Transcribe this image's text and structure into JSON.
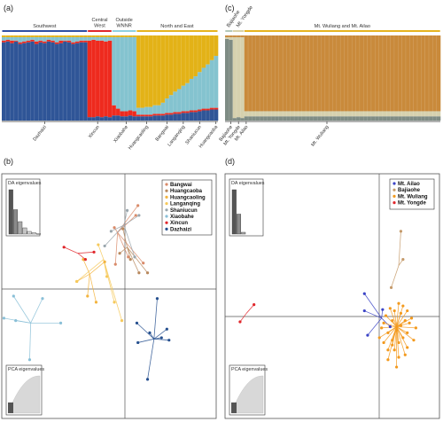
{
  "panels": {
    "a": {
      "label": "(a)"
    },
    "b": {
      "label": "(b)"
    },
    "c": {
      "label": "(c)"
    },
    "d": {
      "label": "(d)"
    }
  },
  "chart_data": [
    {
      "id": "a",
      "type": "bar",
      "stacked": true,
      "n_individuals": 53,
      "groups": [
        {
          "name": "Southwest",
          "start": 0,
          "end": 21,
          "color": "#2e4fa3"
        },
        {
          "name": "Central West",
          "start": 21,
          "end": 27,
          "color": "#e0262b"
        },
        {
          "name": "Outside WNNR",
          "start": 27,
          "end": 33,
          "color": "#8fd0df"
        },
        {
          "name": "North and East",
          "start": 33,
          "end": 53,
          "color": "#e6b420"
        }
      ],
      "tick_labels": [
        {
          "label": "Dazhaizi",
          "at": 10
        },
        {
          "label": "Xincun",
          "at": 23
        },
        {
          "label": "Xiaobahe",
          "at": 30
        },
        {
          "label": "Huangcaoling",
          "at": 35
        },
        {
          "label": "Bangwai",
          "at": 40
        },
        {
          "label": "Langanqing",
          "at": 44
        },
        {
          "label": "Shaniucun",
          "at": 48
        },
        {
          "label": "Huangcaoba",
          "at": 52
        }
      ],
      "colors": {
        "blue": "#2f5597",
        "red": "#ee2a1e",
        "lightblue": "#84c3cf",
        "yellow": "#e3b217"
      },
      "proportions": [
        [
          0.92,
          0.02,
          0.04,
          0.02
        ],
        [
          0.93,
          0.02,
          0.03,
          0.02
        ],
        [
          0.91,
          0.03,
          0.04,
          0.02
        ],
        [
          0.93,
          0.01,
          0.04,
          0.02
        ],
        [
          0.9,
          0.02,
          0.06,
          0.02
        ],
        [
          0.91,
          0.02,
          0.05,
          0.02
        ],
        [
          0.92,
          0.02,
          0.04,
          0.02
        ],
        [
          0.93,
          0.02,
          0.03,
          0.02
        ],
        [
          0.9,
          0.03,
          0.05,
          0.02
        ],
        [
          0.92,
          0.02,
          0.04,
          0.02
        ],
        [
          0.91,
          0.02,
          0.05,
          0.02
        ],
        [
          0.93,
          0.02,
          0.03,
          0.02
        ],
        [
          0.92,
          0.02,
          0.04,
          0.02
        ],
        [
          0.9,
          0.02,
          0.06,
          0.02
        ],
        [
          0.91,
          0.03,
          0.04,
          0.02
        ],
        [
          0.93,
          0.01,
          0.04,
          0.02
        ],
        [
          0.92,
          0.02,
          0.04,
          0.02
        ],
        [
          0.9,
          0.02,
          0.06,
          0.02
        ],
        [
          0.91,
          0.02,
          0.05,
          0.02
        ],
        [
          0.92,
          0.02,
          0.04,
          0.02
        ],
        [
          0.92,
          0.02,
          0.04,
          0.02
        ],
        [
          0.04,
          0.9,
          0.04,
          0.02
        ],
        [
          0.04,
          0.91,
          0.03,
          0.02
        ],
        [
          0.05,
          0.89,
          0.04,
          0.02
        ],
        [
          0.04,
          0.9,
          0.04,
          0.02
        ],
        [
          0.05,
          0.88,
          0.05,
          0.02
        ],
        [
          0.04,
          0.9,
          0.04,
          0.02
        ],
        [
          0.06,
          0.12,
          0.8,
          0.02
        ],
        [
          0.06,
          0.08,
          0.84,
          0.02
        ],
        [
          0.05,
          0.06,
          0.87,
          0.02
        ],
        [
          0.05,
          0.06,
          0.87,
          0.02
        ],
        [
          0.06,
          0.06,
          0.86,
          0.02
        ],
        [
          0.05,
          0.06,
          0.87,
          0.02
        ],
        [
          0.05,
          0.02,
          0.08,
          0.85
        ],
        [
          0.05,
          0.02,
          0.08,
          0.85
        ],
        [
          0.05,
          0.02,
          0.09,
          0.84
        ],
        [
          0.05,
          0.02,
          0.09,
          0.84
        ],
        [
          0.06,
          0.02,
          0.1,
          0.82
        ],
        [
          0.06,
          0.02,
          0.1,
          0.82
        ],
        [
          0.06,
          0.02,
          0.13,
          0.79
        ],
        [
          0.07,
          0.02,
          0.17,
          0.74
        ],
        [
          0.07,
          0.02,
          0.21,
          0.7
        ],
        [
          0.08,
          0.02,
          0.24,
          0.66
        ],
        [
          0.08,
          0.02,
          0.27,
          0.63
        ],
        [
          0.09,
          0.02,
          0.3,
          0.59
        ],
        [
          0.09,
          0.02,
          0.33,
          0.56
        ],
        [
          0.1,
          0.02,
          0.37,
          0.51
        ],
        [
          0.1,
          0.02,
          0.4,
          0.48
        ],
        [
          0.11,
          0.02,
          0.44,
          0.43
        ],
        [
          0.12,
          0.02,
          0.48,
          0.38
        ],
        [
          0.12,
          0.02,
          0.52,
          0.34
        ],
        [
          0.13,
          0.02,
          0.56,
          0.29
        ],
        [
          0.13,
          0.02,
          0.61,
          0.24
        ]
      ]
    },
    {
      "id": "c",
      "type": "bar",
      "stacked": true,
      "n_individuals": 56,
      "groups": [
        {
          "name": "Bajiaohe",
          "start": 0,
          "end": 2,
          "color": "#b4c8b8"
        },
        {
          "name": "Mt. Yongde",
          "start": 2,
          "end": 5,
          "color": "#d9d2a8"
        },
        {
          "name": "Mt. Wuliang and Mt. Ailao",
          "start": 5,
          "end": 56,
          "color": "#e6b420"
        }
      ],
      "tick_labels": [
        {
          "label": "Bajiaohe",
          "at": 1
        },
        {
          "label": "Mt. Yongde",
          "at": 3
        },
        {
          "label": "Mt. Ailao",
          "at": 5
        },
        {
          "label": "Mt. Wuliang",
          "at": 26
        }
      ],
      "colors": {
        "grey": "#7f8c84",
        "beige": "#d6d1ae",
        "orange": "#c98a3b"
      },
      "proportions_note": "grey, beige, orange per individual",
      "proportions": [
        [
          0.96,
          0.02,
          0.02
        ],
        [
          0.95,
          0.03,
          0.02
        ],
        [
          0.03,
          0.95,
          0.02
        ],
        [
          0.04,
          0.94,
          0.02
        ],
        [
          0.03,
          0.95,
          0.02
        ],
        [
          0.05,
          0.06,
          0.89
        ]
      ]
    },
    {
      "id": "b",
      "type": "scatter",
      "legend": [
        "Bangwai",
        "Huangcaoba",
        "Huangcaoling",
        "Langanqing",
        "Shaniucun",
        "Xiaobahe",
        "Xincun",
        "Dazhaizi"
      ],
      "legend_colors": [
        "#d98b6a",
        "#b8895e",
        "#f3b43e",
        "#f6c95a",
        "#9aa6ad",
        "#89bfd7",
        "#e0262b",
        "#26508f"
      ],
      "xlim": [
        -1,
        1
      ],
      "ylim": [
        -1,
        1
      ],
      "centroids": [
        {
          "x": 0.08,
          "y": 0.52
        },
        {
          "x": 0.17,
          "y": 0.4
        },
        {
          "x": -0.18,
          "y": 0.18
        },
        {
          "x": -0.05,
          "y": 0.3
        },
        {
          "x": 0.14,
          "y": 0.58
        },
        {
          "x": -0.73,
          "y": -0.22
        },
        {
          "x": -0.29,
          "y": 0.35
        },
        {
          "x": 0.42,
          "y": -0.35
        }
      ],
      "points": [
        [
          [
            0.27,
            0.74
          ],
          [
            0.18,
            0.32
          ],
          [
            0.32,
            0.27
          ],
          [
            0.06,
            0.26
          ],
          [
            0.05,
            0.56
          ],
          [
            0.25,
            0.66
          ]
        ],
        [
          [
            0.2,
            0.3
          ],
          [
            0.36,
            0.19
          ],
          [
            0.28,
            0.19
          ],
          [
            0.13,
            0.55
          ],
          [
            0.1,
            0.35
          ]
        ],
        [
          [
            -0.3,
            0.12
          ],
          [
            -0.12,
            -0.05
          ],
          [
            -0.2,
            0.0
          ],
          [
            -0.04,
            0.28
          ],
          [
            -0.24,
            0.3
          ]
        ],
        [
          [
            -0.1,
            0.42
          ],
          [
            -0.3,
            0.12
          ],
          [
            0.05,
            -0.05
          ],
          [
            0.12,
            -0.2
          ],
          [
            -0.02,
            0.16
          ]
        ],
        [
          [
            0.17,
            0.7
          ],
          [
            0.02,
            0.53
          ],
          [
            -0.04,
            0.41
          ],
          [
            0.24,
            0.32
          ],
          [
            0.28,
            0.66
          ]
        ],
        [
          [
            -0.98,
            -0.18
          ],
          [
            -0.89,
            0.0
          ],
          [
            -0.62,
            -0.02
          ],
          [
            -0.74,
            -0.52
          ],
          [
            -0.45,
            -0.22
          ],
          [
            -0.87,
            -0.2
          ]
        ],
        [
          [
            -0.42,
            0.4
          ],
          [
            -0.14,
            0.36
          ],
          [
            -0.22,
            0.3
          ]
        ],
        [
          [
            0.45,
            -0.02
          ],
          [
            0.26,
            -0.22
          ],
          [
            0.36,
            -0.68
          ],
          [
            0.54,
            -0.27
          ],
          [
            0.56,
            -0.36
          ],
          [
            0.38,
            -0.3
          ],
          [
            0.27,
            -0.38
          ],
          [
            0.49,
            -0.34
          ]
        ]
      ],
      "inset_da": {
        "title": "DA eigenvalues",
        "values": [
          1.0,
          0.55,
          0.28,
          0.14,
          0.06,
          0.03,
          0.01
        ]
      },
      "inset_pca": {
        "title": "PCA eigenvalues"
      }
    },
    {
      "id": "d",
      "type": "scatter",
      "legend": [
        "Mt. Ailao",
        "Bajiaohe",
        "Mt. Wuliang",
        "Mt. Yongde"
      ],
      "legend_colors": [
        "#3b44c6",
        "#c59a6a",
        "#f39a1e",
        "#e0262b"
      ],
      "xlim": [
        -1,
        1
      ],
      "ylim": [
        -1,
        1
      ],
      "centroids": [
        {
          "x": 0.46,
          "y": -0.18
        },
        {
          "x": 0.62,
          "y": 0.25
        },
        {
          "x": 0.6,
          "y": -0.25
        },
        {
          "x": -0.8,
          "y": -0.14
        }
      ],
      "points": [
        [
          [
            0.3,
            0.02
          ],
          [
            0.3,
            -0.12
          ],
          [
            0.54,
            -0.25
          ],
          [
            0.33,
            -0.32
          ],
          [
            0.47,
            -0.11
          ]
        ],
        [
          [
            0.64,
            0.53
          ],
          [
            0.55,
            0.07
          ],
          [
            0.66,
            0.3
          ]
        ],
        [
          [
            0.48,
            -0.22
          ],
          [
            0.52,
            -0.3
          ],
          [
            0.56,
            -0.4
          ],
          [
            0.58,
            -0.44
          ],
          [
            0.62,
            -0.38
          ],
          [
            0.66,
            -0.34
          ],
          [
            0.7,
            -0.3
          ],
          [
            0.72,
            -0.22
          ],
          [
            0.74,
            -0.18
          ],
          [
            0.7,
            -0.12
          ],
          [
            0.66,
            -0.08
          ],
          [
            0.62,
            -0.06
          ],
          [
            0.58,
            -0.12
          ],
          [
            0.54,
            -0.1
          ],
          [
            0.5,
            -0.16
          ],
          [
            0.46,
            -0.26
          ],
          [
            0.44,
            -0.34
          ],
          [
            0.52,
            -0.52
          ],
          [
            0.6,
            -0.58
          ],
          [
            0.68,
            -0.48
          ],
          [
            0.78,
            -0.26
          ],
          [
            0.76,
            -0.36
          ],
          [
            0.64,
            -0.14
          ],
          [
            0.56,
            -0.2
          ],
          [
            0.6,
            -0.28
          ],
          [
            0.64,
            -0.24
          ],
          [
            0.68,
            -0.2
          ],
          [
            0.56,
            -0.36
          ],
          [
            0.62,
            -0.5
          ],
          [
            0.52,
            -0.44
          ],
          [
            0.48,
            -0.38
          ],
          [
            0.7,
            -0.42
          ]
        ],
        [
          [
            -0.86,
            -0.21
          ],
          [
            -0.73,
            -0.07
          ]
        ]
      ],
      "inset_da": {
        "title": "DA eigenvalues",
        "values": [
          1.0,
          0.45,
          0.04
        ]
      },
      "inset_pca": {
        "title": "PCA eigenvalues"
      }
    }
  ]
}
